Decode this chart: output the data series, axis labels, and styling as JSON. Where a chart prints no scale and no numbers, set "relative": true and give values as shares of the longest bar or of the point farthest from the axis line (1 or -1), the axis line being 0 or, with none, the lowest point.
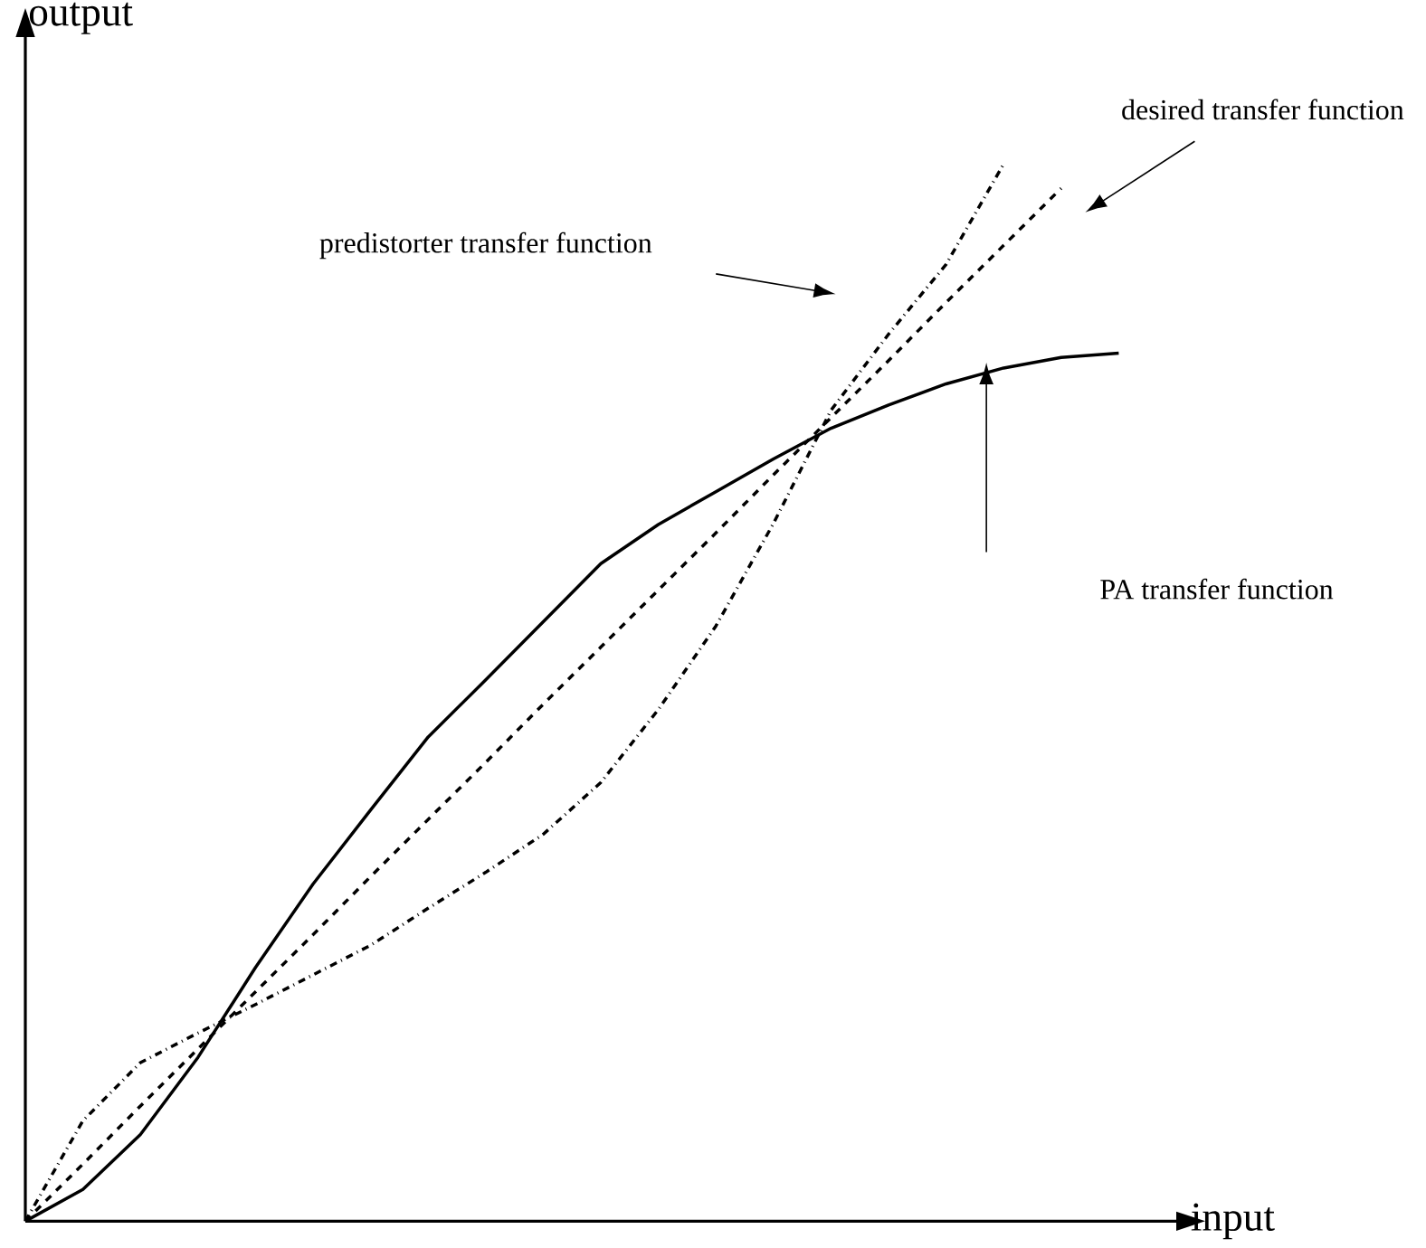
{
  "chart_data": {
    "type": "line",
    "relative": true,
    "xlabel": "input",
    "ylabel": "output",
    "categories": [
      null,
      null,
      null,
      null,
      null,
      null,
      null,
      null,
      null,
      null,
      null,
      null,
      null,
      null,
      null,
      null,
      null,
      null,
      null,
      null,
      null
    ],
    "series": [
      {
        "color": "#000000",
        "line_style": "solid",
        "values": [
          0,
          0.03,
          0.082,
          0.155,
          0.24,
          0.319,
          0.389,
          0.458,
          0.512,
          0.567,
          0.622,
          0.659,
          0.69,
          0.721,
          0.75,
          0.772,
          0.792,
          0.807,
          0.817,
          0.821,
          null
        ]
      },
      {
        "color": "#000000",
        "line_style": "dashed",
        "values": [
          0,
          0.054,
          0.109,
          0.163,
          0.217,
          0.271,
          0.326,
          0.38,
          0.434,
          0.489,
          0.543,
          0.597,
          0.651,
          0.706,
          0.76,
          0.814,
          0.869,
          0.923,
          0.977,
          null,
          null
        ]
      },
      {
        "color": "#000000",
        "line_style": "dashdot",
        "values": [
          0,
          0.095,
          0.15,
          0.178,
          0.205,
          0.233,
          0.261,
          0.296,
          0.33,
          0.366,
          0.415,
          0.484,
          0.563,
          0.66,
          0.767,
          0.839,
          0.905,
          1,
          null,
          null,
          null
        ]
      }
    ],
    "annotations": [
      "predistorter transfer function",
      "desired transfer function",
      "PA transfer function"
    ]
  }
}
